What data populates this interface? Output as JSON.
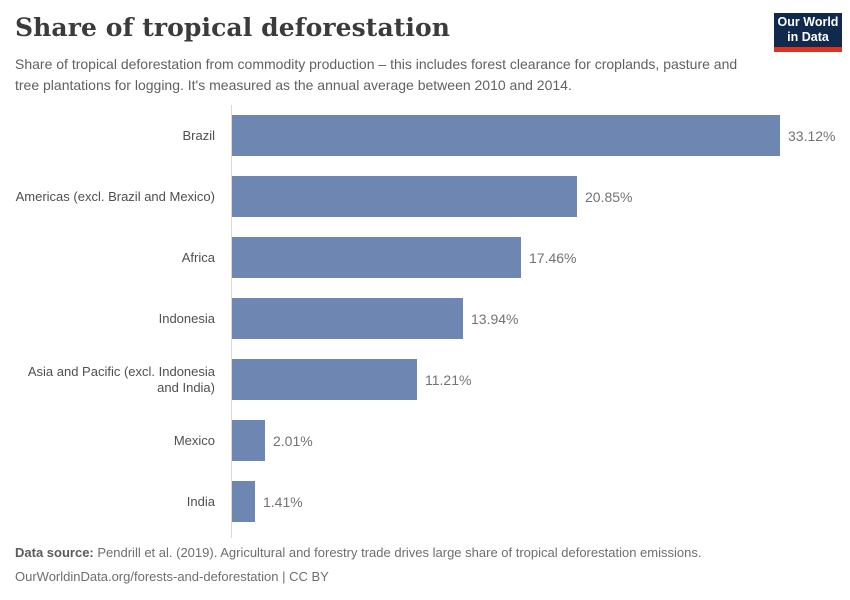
{
  "header": {
    "title": "Share of tropical deforestation",
    "subtitle": "Share of tropical deforestation from commodity production – this includes forest clearance for croplands, pasture and tree plantations for logging. It's measured as the annual average between 2010 and 2014.",
    "logo": {
      "line1": "Our World",
      "line2": "in Data",
      "bg_color": "#102a4e",
      "accent_color": "#e0301f"
    }
  },
  "chart_data": {
    "type": "bar",
    "orientation": "horizontal",
    "title": "Share of tropical deforestation",
    "categories": [
      "Brazil",
      "Americas (excl. Brazil and Mexico)",
      "Africa",
      "Indonesia",
      "Asia and Pacific (excl. Indonesia and India)",
      "Mexico",
      "India"
    ],
    "values": [
      33.12,
      20.85,
      17.46,
      13.94,
      11.21,
      2.01,
      1.41
    ],
    "value_labels": [
      "33.12%",
      "20.85%",
      "17.46%",
      "13.94%",
      "11.21%",
      "2.01%",
      "1.41%"
    ],
    "value_suffix": "%",
    "xlim": [
      0,
      33.12
    ],
    "bar_color": "#6e87b2",
    "grid": false,
    "legend": "none"
  },
  "footer": {
    "source_label": "Data source:",
    "source_text": " Pendrill et al. (2019). Agricultural and forestry trade drives large share of tropical deforestation emissions.",
    "link_line": "OurWorldinData.org/forests-and-deforestation | CC BY"
  }
}
